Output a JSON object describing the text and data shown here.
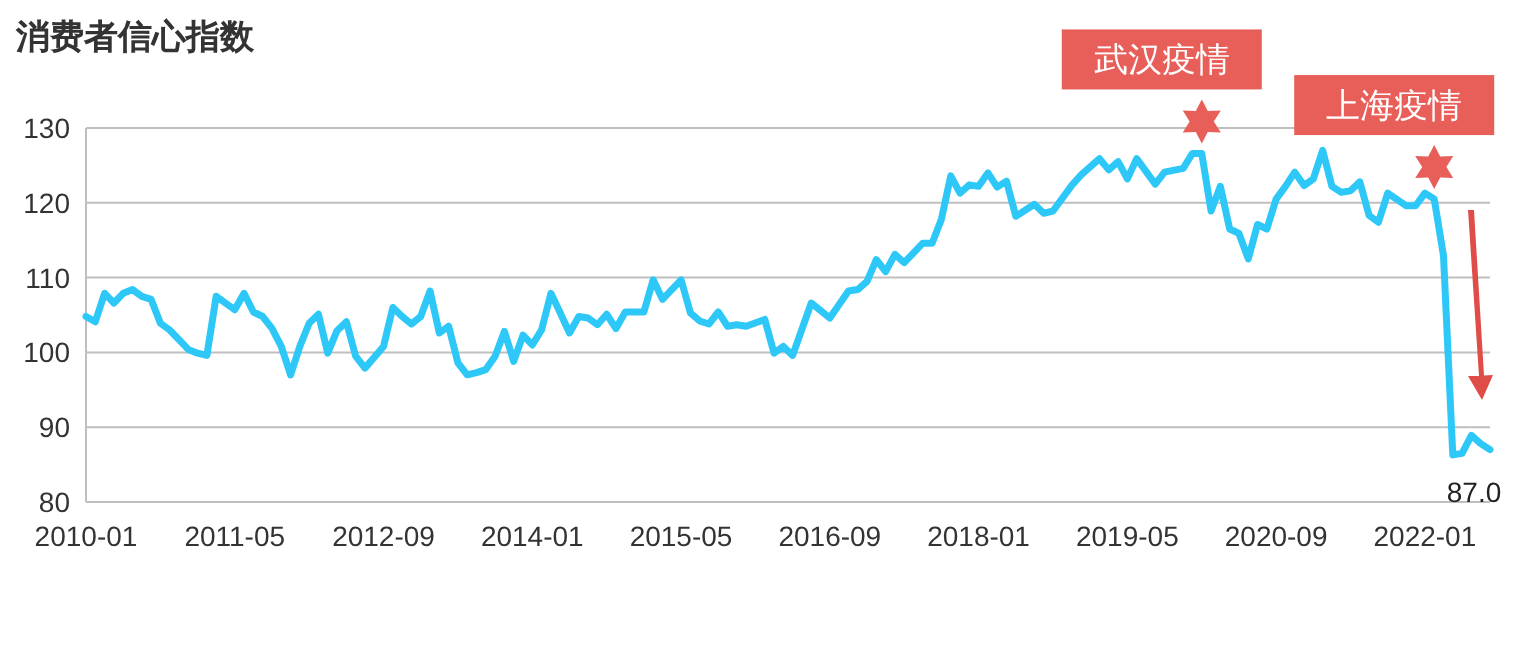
{
  "chart_data": {
    "type": "line",
    "title": "消费者信心指数",
    "x": [
      "2010-01",
      "2010-02",
      "2010-03",
      "2010-04",
      "2010-05",
      "2010-06",
      "2010-07",
      "2010-08",
      "2010-09",
      "2010-10",
      "2010-12",
      "2011-01",
      "2011-02",
      "2011-03",
      "2011-05",
      "2011-06",
      "2011-07",
      "2011-08",
      "2011-09",
      "2011-10",
      "2011-11",
      "2011-12",
      "2012-01",
      "2012-02",
      "2012-03",
      "2012-04",
      "2012-05",
      "2012-06",
      "2012-07",
      "2012-09",
      "2012-10",
      "2012-11",
      "2012-12",
      "2013-01",
      "2013-02",
      "2013-03",
      "2013-04",
      "2013-05",
      "2013-06",
      "2013-07",
      "2013-08",
      "2013-09",
      "2013-10",
      "2013-11",
      "2013-12",
      "2014-01",
      "2014-02",
      "2014-03",
      "2014-04",
      "2014-05",
      "2014-06",
      "2014-07",
      "2014-08",
      "2014-09",
      "2014-10",
      "2014-11",
      "2015-01",
      "2015-02",
      "2015-03",
      "2015-05",
      "2015-06",
      "2015-07",
      "2015-08",
      "2015-09",
      "2015-10",
      "2015-11",
      "2015-12",
      "2016-02",
      "2016-03",
      "2016-04",
      "2016-05",
      "2016-07",
      "2016-09",
      "2016-11",
      "2016-12",
      "2017-01",
      "2017-02",
      "2017-03",
      "2017-04",
      "2017-05",
      "2017-07",
      "2017-08",
      "2017-09",
      "2017-10",
      "2017-11",
      "2017-12",
      "2018-01",
      "2018-02",
      "2018-03",
      "2018-04",
      "2018-05",
      "2018-07",
      "2018-08",
      "2018-09",
      "2018-11",
      "2018-12",
      "2019-02",
      "2019-03",
      "2019-04",
      "2019-05",
      "2019-06",
      "2019-08",
      "2019-09",
      "2019-11",
      "2019-12",
      "2020-01",
      "2020-02",
      "2020-03",
      "2020-04",
      "2020-05",
      "2020-06",
      "2020-07",
      "2020-08",
      "2020-09",
      "2020-10",
      "2020-11",
      "2020-12",
      "2021-01",
      "2021-02",
      "2021-03",
      "2021-04",
      "2021-05",
      "2021-06",
      "2021-07",
      "2021-08",
      "2021-09",
      "2021-11",
      "2021-12",
      "2022-01",
      "2022-02",
      "2022-03",
      "2022-04",
      "2022-05",
      "2022-06",
      "2022-07",
      "2022-08"
    ],
    "series": [
      {
        "color": "#2ec8f8",
        "values": [
          104.8,
          104.1,
          107.9,
          106.6,
          107.9,
          108.4,
          107.5,
          107.1,
          103.9,
          103.0,
          100.4,
          99.9,
          99.6,
          107.5,
          105.7,
          107.9,
          105.4,
          104.8,
          103.2,
          100.8,
          97.0,
          100.8,
          103.9,
          105.1,
          99.9,
          102.9,
          104.1,
          99.5,
          97.9,
          100.8,
          106.0,
          104.8,
          103.8,
          104.8,
          108.2,
          102.6,
          103.5,
          98.6,
          97.0,
          97.3,
          97.7,
          99.5,
          102.8,
          98.8,
          102.3,
          101.0,
          103.0,
          107.9,
          105.3,
          102.6,
          104.8,
          104.6,
          103.7,
          105.1,
          103.2,
          105.4,
          105.4,
          109.7,
          107.1,
          109.7,
          105.3,
          104.2,
          103.8,
          105.4,
          103.5,
          103.7,
          103.5,
          104.4,
          99.9,
          100.8,
          99.6,
          106.6,
          104.6,
          108.2,
          108.4,
          109.5,
          112.4,
          110.8,
          113.1,
          112.0,
          114.6,
          114.6,
          117.8,
          123.6,
          121.3,
          122.4,
          122.2,
          124.0,
          122.1,
          122.9,
          118.2,
          119.8,
          118.6,
          118.9,
          122.3,
          123.7,
          125.9,
          124.4,
          125.5,
          123.2,
          125.9,
          122.5,
          124.1,
          124.6,
          126.6,
          126.6,
          118.9,
          122.2,
          116.5,
          115.9,
          112.5,
          117.1,
          116.5,
          120.5,
          122.2,
          124.1,
          122.3,
          123.2,
          127.0,
          122.2,
          121.4,
          121.6,
          122.8,
          118.3,
          117.4,
          121.3,
          119.6,
          119.6,
          121.3,
          120.5,
          112.9,
          86.3,
          86.5,
          88.9,
          87.8,
          87.0
        ],
        "value_labels": [
          null,
          null,
          null,
          null,
          null,
          null,
          null,
          null,
          null,
          null,
          null,
          null,
          null,
          null,
          null,
          null,
          null,
          null,
          null,
          null,
          null,
          null,
          null,
          null,
          null,
          null,
          null,
          null,
          null,
          null,
          null,
          null,
          null,
          null,
          null,
          null,
          null,
          null,
          null,
          null,
          null,
          null,
          null,
          null,
          null,
          null,
          null,
          null,
          null,
          null,
          null,
          null,
          null,
          null,
          null,
          null,
          null,
          null,
          null,
          null,
          null,
          null,
          null,
          null,
          null,
          null,
          null,
          null,
          null,
          null,
          null,
          null,
          null,
          null,
          null,
          null,
          null,
          null,
          null,
          null,
          null,
          null,
          null,
          null,
          null,
          null,
          null,
          null,
          null,
          null,
          null,
          null,
          null,
          null,
          null,
          null,
          null,
          null,
          null,
          null,
          null,
          null,
          null,
          null,
          null,
          null,
          null,
          null,
          null,
          null,
          null,
          null,
          null,
          null,
          null,
          null,
          null,
          null,
          null,
          null,
          null,
          null,
          null,
          null,
          null,
          null,
          null,
          null,
          null,
          null,
          null,
          null,
          null,
          null,
          null,
          "87.0"
        ]
      }
    ],
    "xlim": [
      "2010-01",
      "2022-08"
    ],
    "xticks": [
      "2010-01",
      "2011-05",
      "2012-09",
      "2014-01",
      "2015-05",
      "2016-09",
      "2018-01",
      "2019-05",
      "2020-09",
      "2022-01"
    ],
    "ylim": [
      80,
      130
    ],
    "yticks": [
      80,
      90,
      100,
      110,
      120,
      130
    ],
    "grid": "y",
    "marker": "none",
    "line_style": "solid",
    "annotations": [
      {
        "text": "武汉疫情",
        "x": "2020-01",
        "y": 126.6
      },
      {
        "text": "上海疫情",
        "x": "2022-02",
        "y": 120.5
      }
    ]
  }
}
